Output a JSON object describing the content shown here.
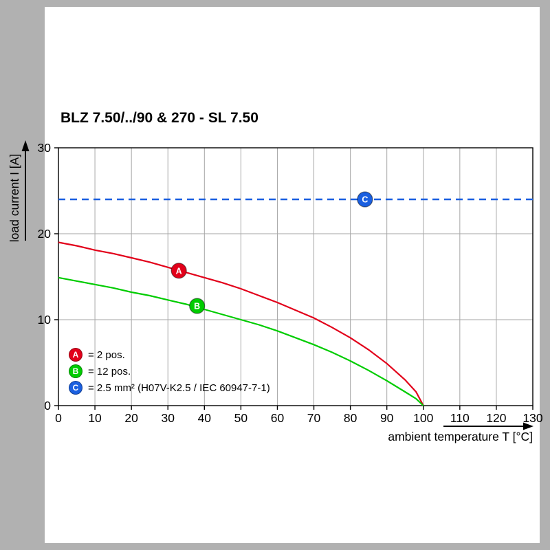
{
  "frame": {
    "background": "#b1b1b1",
    "page_background": "#ffffff"
  },
  "title": "BLZ 7.50/../90 & 270 - SL 7.50",
  "chart_data": {
    "type": "line",
    "title": "BLZ 7.50/../90 & 270 - SL 7.50",
    "xlabel": "ambient temperature T [°C]",
    "ylabel": "load current I [A]",
    "xlim": [
      0,
      130
    ],
    "ylim": [
      0,
      30
    ],
    "x_ticks": [
      0,
      10,
      20,
      30,
      40,
      50,
      60,
      70,
      80,
      90,
      100,
      110,
      120,
      130
    ],
    "y_ticks": [
      0,
      10,
      20,
      30
    ],
    "grid": true,
    "legend_position": "bottom-left-inside",
    "colors": {
      "grid": "#a6a6a6",
      "axis": "#000000",
      "series_a": "#e2001a",
      "series_b": "#00cc00",
      "series_c": "#1a5fe0"
    },
    "series": [
      {
        "name": "A",
        "label": "= 2 pos.",
        "color": "#e2001a",
        "line_style": "solid",
        "marker": {
          "x": 33,
          "y": 15.7
        },
        "points": [
          [
            0,
            19.0
          ],
          [
            5,
            18.6
          ],
          [
            10,
            18.1
          ],
          [
            15,
            17.7
          ],
          [
            20,
            17.2
          ],
          [
            25,
            16.7
          ],
          [
            30,
            16.1
          ],
          [
            35,
            15.5
          ],
          [
            40,
            14.9
          ],
          [
            45,
            14.3
          ],
          [
            50,
            13.6
          ],
          [
            55,
            12.8
          ],
          [
            60,
            12.0
          ],
          [
            65,
            11.1
          ],
          [
            70,
            10.2
          ],
          [
            75,
            9.1
          ],
          [
            80,
            7.9
          ],
          [
            85,
            6.5
          ],
          [
            90,
            4.9
          ],
          [
            95,
            3.0
          ],
          [
            98,
            1.6
          ],
          [
            100,
            0
          ]
        ]
      },
      {
        "name": "B",
        "label": "= 12 pos.",
        "color": "#00cc00",
        "line_style": "solid",
        "marker": {
          "x": 38,
          "y": 11.6
        },
        "points": [
          [
            0,
            14.9
          ],
          [
            5,
            14.5
          ],
          [
            10,
            14.1
          ],
          [
            15,
            13.7
          ],
          [
            20,
            13.2
          ],
          [
            25,
            12.8
          ],
          [
            30,
            12.3
          ],
          [
            35,
            11.8
          ],
          [
            40,
            11.2
          ],
          [
            45,
            10.6
          ],
          [
            50,
            10.0
          ],
          [
            55,
            9.4
          ],
          [
            60,
            8.7
          ],
          [
            65,
            7.9
          ],
          [
            70,
            7.1
          ],
          [
            75,
            6.2
          ],
          [
            80,
            5.2
          ],
          [
            85,
            4.1
          ],
          [
            90,
            2.9
          ],
          [
            95,
            1.6
          ],
          [
            98,
            0.8
          ],
          [
            100,
            0
          ]
        ]
      },
      {
        "name": "C",
        "label": "= 2.5 mm² (H07V-K2.5 / IEC 60947-7-1)",
        "color": "#1a5fe0",
        "line_style": "dashed",
        "marker": {
          "x": 84,
          "y": 24
        },
        "points": [
          [
            0,
            24
          ],
          [
            130,
            24
          ]
        ]
      }
    ]
  }
}
